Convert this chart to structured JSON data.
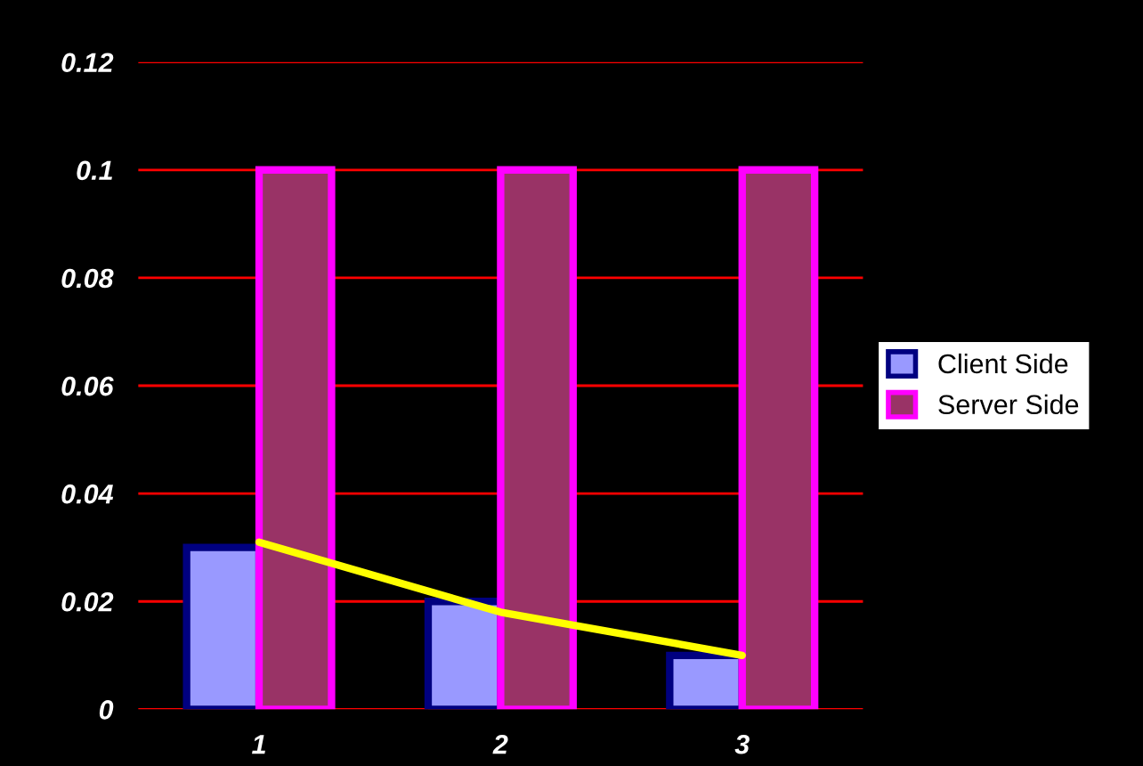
{
  "chart_data": {
    "type": "bar",
    "categories": [
      "1",
      "2",
      "3"
    ],
    "series": [
      {
        "name": "Client Side",
        "color": "#9999ff",
        "values": [
          0.03,
          0.02,
          0.01
        ]
      },
      {
        "name": "Server Side",
        "color": "#993366",
        "values": [
          0.1,
          0.1,
          0.1
        ]
      },
      {
        "type": "line",
        "color": "#ffff00",
        "x": [
          "1",
          "2",
          "3"
        ],
        "values": [
          0.031,
          0.018,
          0.01
        ]
      }
    ],
    "ylim": [
      0,
      0.12
    ],
    "yticks": [
      0,
      0.02,
      0.04,
      0.06,
      0.08,
      0.1,
      0.12
    ],
    "grid": "y",
    "legend": "right"
  }
}
